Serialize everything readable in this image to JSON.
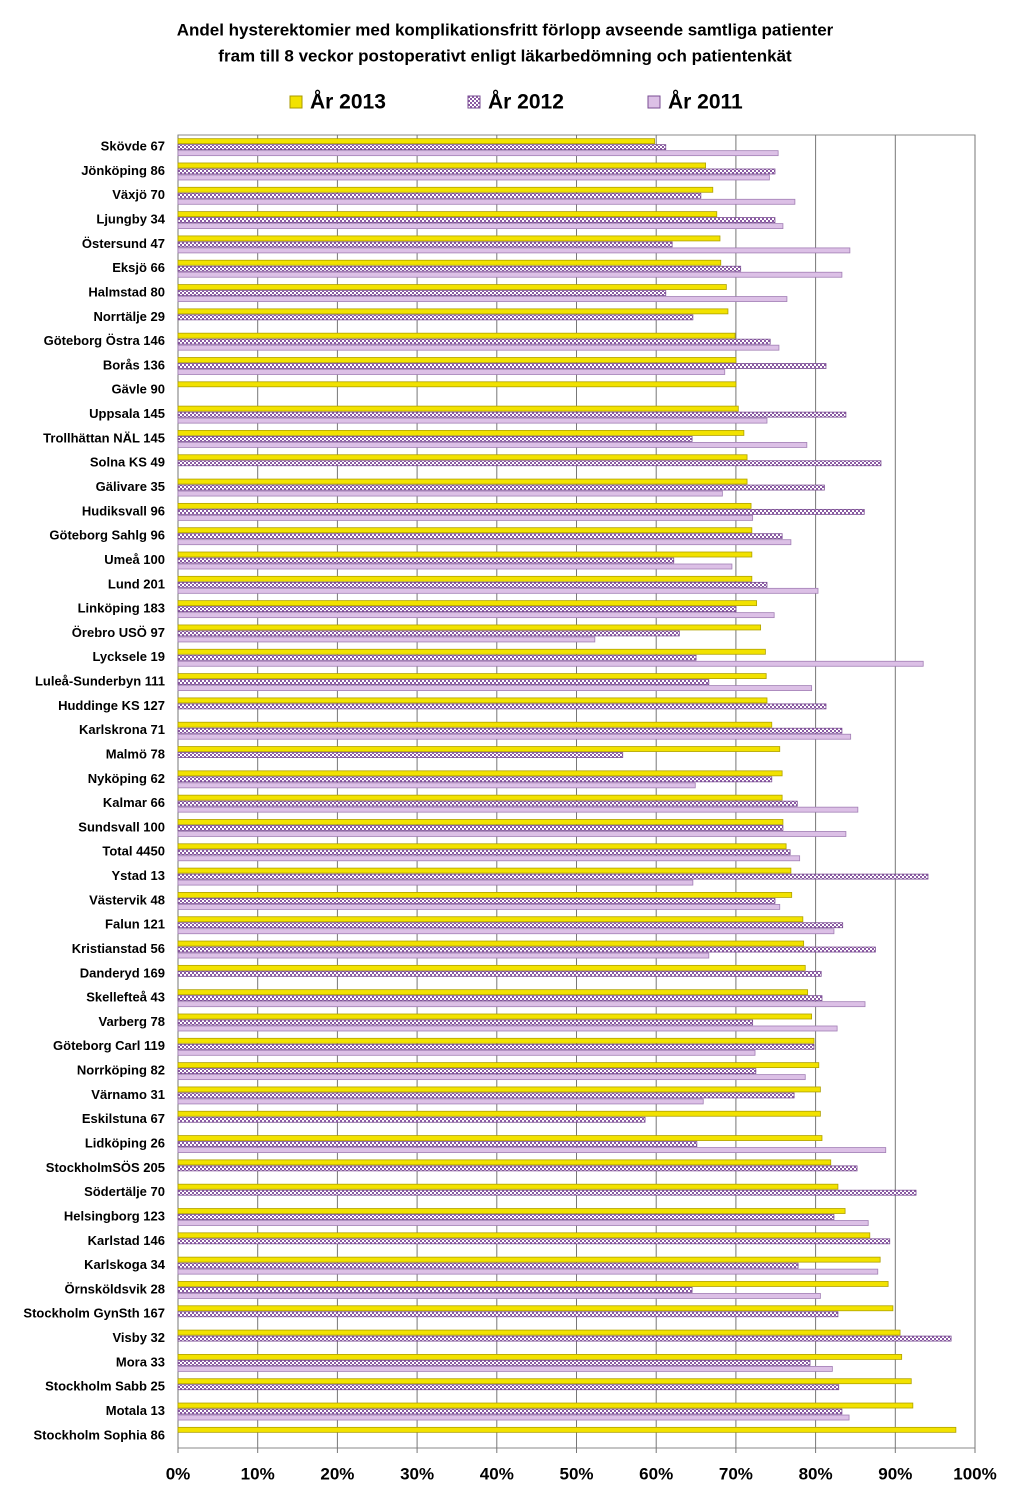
{
  "chart_data": {
    "type": "hbar",
    "title": [
      "Andel hysterektomier med komplikationsfritt förlopp avseende samtliga patienter",
      "fram till 8 veckor postoperativt enligt läkarbedömning och patientenkät"
    ],
    "categories": [
      "Skövde 67",
      "Jönköping 86",
      "Växjö 70",
      "Ljungby 34",
      "Östersund 47",
      "Eksjö 66",
      "Halmstad 80",
      "Norrtälje 29",
      "Göteborg Östra 146",
      "Borås 136",
      "Gävle 90",
      "Uppsala 145",
      "Trollhättan NÄL 145",
      "Solna KS 49",
      "Gälivare 35",
      "Hudiksvall 96",
      "Göteborg Sahlg 96",
      "Umeå 100",
      "Lund 201",
      "Linköping 183",
      "Örebro USÖ 97",
      "Lycksele 19",
      "Luleå-Sunderbyn 111",
      "Huddinge KS 127",
      "Karlskrona 71",
      "Malmö 78",
      "Nyköping 62",
      "Kalmar 66",
      "Sundsvall 100",
      "Total 4450",
      "Ystad 13",
      "Västervik 48",
      "Falun 121",
      "Kristianstad 56",
      "Danderyd 169",
      "Skellefteå 43",
      "Varberg 78",
      "Göteborg Carl 119",
      "Norrköping 82",
      "Värnamo 31",
      "Eskilstuna 67",
      "Lidköping 26",
      "StockholmSÖS 205",
      "Södertälje 70",
      "Helsingborg 123",
      "Karlstad 146",
      "Karlskoga 34",
      "Örnsköldsvik 28",
      "Stockholm GynSth 167",
      "Visby 32",
      "Mora 33",
      "Stockholm Sabb 25",
      "Motala 13",
      "Stockholm Sophia 86"
    ],
    "series": [
      {
        "name": "År 2013",
        "color": "#f2e200",
        "values": [
          59.8,
          66.2,
          67.1,
          67.6,
          68.0,
          68.1,
          68.8,
          69.0,
          69.9,
          70.0,
          70.0,
          70.3,
          71.0,
          71.4,
          71.4,
          71.9,
          72.0,
          72.0,
          72.0,
          72.6,
          73.1,
          73.7,
          73.8,
          73.9,
          74.5,
          75.5,
          75.8,
          75.8,
          75.9,
          76.3,
          76.9,
          77.0,
          78.4,
          78.5,
          78.7,
          79.0,
          79.5,
          79.8,
          80.4,
          80.6,
          80.6,
          80.8,
          81.9,
          82.8,
          83.7,
          86.8,
          88.1,
          89.1,
          89.7,
          90.6,
          90.8,
          92.0,
          92.2,
          97.6
        ]
      },
      {
        "name": "År 2012",
        "color": "#9b6fb0",
        "values": [
          61.2,
          74.9,
          65.6,
          74.9,
          62.0,
          70.6,
          61.2,
          64.6,
          74.3,
          81.3,
          null,
          83.8,
          64.5,
          88.2,
          81.1,
          86.1,
          75.8,
          62.2,
          73.9,
          70.0,
          62.9,
          65.0,
          66.6,
          81.3,
          83.3,
          55.8,
          74.5,
          77.7,
          75.9,
          76.8,
          94.1,
          74.9,
          83.4,
          87.5,
          80.7,
          80.8,
          72.1,
          79.8,
          72.5,
          77.3,
          58.6,
          65.1,
          85.2,
          92.6,
          82.3,
          89.3,
          77.8,
          64.5,
          82.8,
          97.0,
          79.3,
          82.9,
          83.3,
          null
        ]
      },
      {
        "name": "År 2011",
        "color": "#dcc0e6",
        "values": [
          75.3,
          74.2,
          77.4,
          75.9,
          84.3,
          83.3,
          76.4,
          null,
          75.4,
          68.6,
          null,
          73.9,
          78.9,
          null,
          68.3,
          72.1,
          76.9,
          69.5,
          80.3,
          74.8,
          52.3,
          93.5,
          79.5,
          null,
          84.4,
          null,
          64.9,
          85.3,
          83.8,
          78.0,
          64.6,
          75.5,
          82.3,
          66.6,
          null,
          86.2,
          82.7,
          72.4,
          78.7,
          65.9,
          null,
          88.8,
          null,
          null,
          86.6,
          null,
          87.8,
          80.6,
          null,
          null,
          82.1,
          null,
          84.2,
          null
        ]
      }
    ],
    "xlim": [
      0,
      100
    ],
    "xticks": [
      {
        "value": 0,
        "label": "0%"
      },
      {
        "value": 10,
        "label": "10%"
      },
      {
        "value": 20,
        "label": "20%"
      },
      {
        "value": 30,
        "label": "30%"
      },
      {
        "value": 40,
        "label": "40%"
      },
      {
        "value": 50,
        "label": "50%"
      },
      {
        "value": 60,
        "label": "60%"
      },
      {
        "value": 70,
        "label": "70%"
      },
      {
        "value": 80,
        "label": "80%"
      },
      {
        "value": 90,
        "label": "90%"
      },
      {
        "value": 100,
        "label": "100%"
      }
    ],
    "grid": true,
    "legend": "top"
  }
}
